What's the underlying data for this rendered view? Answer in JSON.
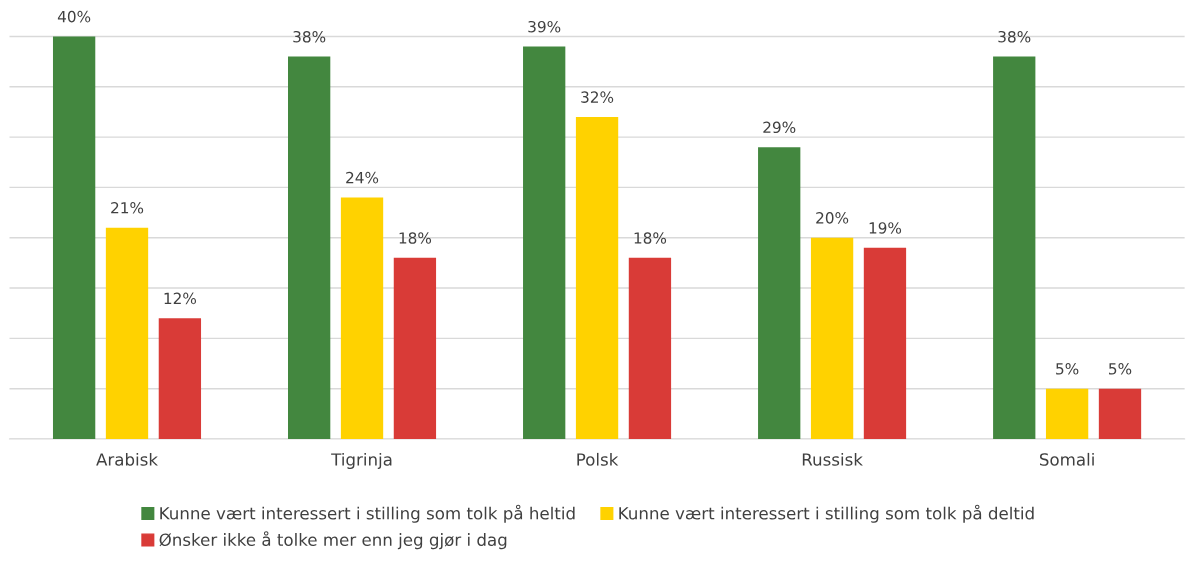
{
  "chart_data": {
    "type": "bar",
    "categories": [
      "Arabisk",
      "Tigrinja",
      "Polsk",
      "Russisk",
      "Somali"
    ],
    "series": [
      {
        "name": "Kunne vært interessert i stilling som tolk på heltid",
        "color": "#43873f",
        "values": [
          40,
          38,
          39,
          29,
          38
        ],
        "value_labels": [
          "40%",
          "38%",
          "39%",
          "29%",
          "38%"
        ]
      },
      {
        "name": "Kunne vært interessert i stilling som tolk på deltid",
        "color": "#ffd200",
        "values": [
          21,
          24,
          32,
          20,
          5
        ],
        "value_labels": [
          "21%",
          "24%",
          "32%",
          "20%",
          "5%"
        ]
      },
      {
        "name": "Ønsker ikke å tolke mer enn jeg gjør i dag",
        "color": "#d93b37",
        "values": [
          12,
          18,
          18,
          19,
          5
        ],
        "value_labels": [
          "12%",
          "18%",
          "18%",
          "19%",
          "5%"
        ]
      }
    ],
    "tick_labels": "x",
    "grid": "y",
    "legend": "bottom"
  }
}
